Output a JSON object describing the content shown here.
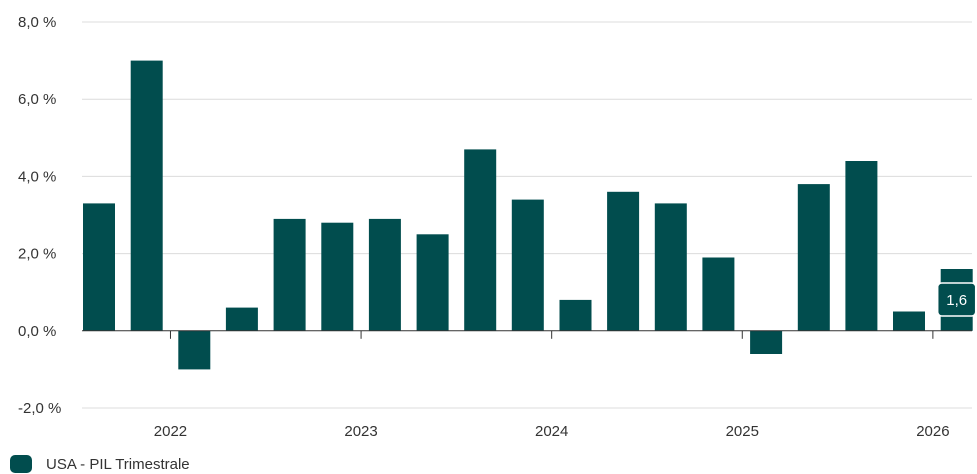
{
  "chart_data": {
    "type": "bar",
    "y_tick_labels": [
      "8,0 %",
      "6,0 %",
      "4,0 %",
      "2,0 %",
      "0,0 %",
      "-2,0 %"
    ],
    "y_ticks": [
      8,
      6,
      4,
      2,
      0,
      -2
    ],
    "ylim": [
      -2,
      8
    ],
    "x_tick_labels": [
      "2022",
      "2023",
      "2024",
      "2025",
      "2026"
    ],
    "x_tick_after_bar": [
      1.5,
      5.5,
      9.5,
      13.5,
      17.5
    ],
    "series": [
      {
        "name": "USA - PIL Trimestrale",
        "color": "#014d4e",
        "values": [
          3.3,
          7.0,
          -1.0,
          0.6,
          2.9,
          2.8,
          2.9,
          2.5,
          4.7,
          3.4,
          0.8,
          3.6,
          3.3,
          1.9,
          -0.6,
          3.8,
          4.4,
          0.5,
          1.6
        ]
      }
    ],
    "grid": true,
    "legend_position": "bottom-left",
    "tooltip": {
      "label": "1,6",
      "index": 18
    }
  },
  "legend": {
    "label": "USA - PIL Trimestrale"
  },
  "colors": {
    "bar": "#014d4e",
    "grid": "#dcdcdc",
    "axis": "#333333"
  }
}
